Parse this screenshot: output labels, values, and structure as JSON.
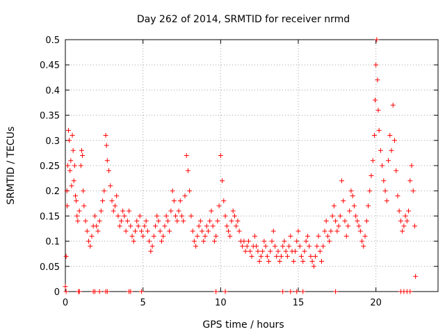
{
  "chart_data": {
    "type": "scatter",
    "title": "Day 262 of 2014, SRMTID for receiver nrmd",
    "xlabel": "GPS time / hours",
    "ylabel": "SRMTID / TECUs",
    "xlim": [
      0,
      24
    ],
    "ylim": [
      0,
      0.5
    ],
    "grid": true,
    "x_ticks": [
      {
        "value": 0,
        "label": "0"
      },
      {
        "value": 5,
        "label": "5"
      },
      {
        "value": 10,
        "label": "10"
      },
      {
        "value": 15,
        "label": "15"
      },
      {
        "value": 20,
        "label": "20"
      }
    ],
    "y_ticks": [
      {
        "value": 0,
        "label": "0"
      },
      {
        "value": 0.05,
        "label": "0.05"
      },
      {
        "value": 0.1,
        "label": "0.1"
      },
      {
        "value": 0.15,
        "label": "0.15"
      },
      {
        "value": 0.2,
        "label": "0.2"
      },
      {
        "value": 0.25,
        "label": "0.25"
      },
      {
        "value": 0.3,
        "label": "0.3"
      },
      {
        "value": 0.35,
        "label": "0.35"
      },
      {
        "value": 0.4,
        "label": "0.4"
      },
      {
        "value": 0.45,
        "label": "0.45"
      },
      {
        "value": 0.5,
        "label": "0.5"
      }
    ],
    "marker": "+",
    "marker_color": "#ff0000",
    "series": [
      {
        "name": "SRMTID",
        "points": [
          [
            0.0,
            0.01
          ],
          [
            0.05,
            0.07
          ],
          [
            0.1,
            0.2
          ],
          [
            0.12,
            0.17
          ],
          [
            0.15,
            0.25
          ],
          [
            0.2,
            0.32
          ],
          [
            0.25,
            0.3
          ],
          [
            0.3,
            0.24
          ],
          [
            0.35,
            0.26
          ],
          [
            0.4,
            0.21
          ],
          [
            0.45,
            0.31
          ],
          [
            0.5,
            0.28
          ],
          [
            0.55,
            0.22
          ],
          [
            0.6,
            0.25
          ],
          [
            0.65,
            0.19
          ],
          [
            0.7,
            0.18
          ],
          [
            0.75,
            0.15
          ],
          [
            0.8,
            0.14
          ],
          [
            0.9,
            0.16
          ],
          [
            1.0,
            0.25
          ],
          [
            1.05,
            0.28
          ],
          [
            1.1,
            0.27
          ],
          [
            1.15,
            0.2
          ],
          [
            1.2,
            0.17
          ],
          [
            1.3,
            0.14
          ],
          [
            1.4,
            0.12
          ],
          [
            1.5,
            0.1
          ],
          [
            1.6,
            0.09
          ],
          [
            1.7,
            0.11
          ],
          [
            1.8,
            0.13
          ],
          [
            1.9,
            0.15
          ],
          [
            2.0,
            0.13
          ],
          [
            2.1,
            0.12
          ],
          [
            2.2,
            0.14
          ],
          [
            2.3,
            0.16
          ],
          [
            2.4,
            0.18
          ],
          [
            2.5,
            0.2
          ],
          [
            2.6,
            0.31
          ],
          [
            2.65,
            0.29
          ],
          [
            2.7,
            0.26
          ],
          [
            2.8,
            0.24
          ],
          [
            2.9,
            0.21
          ],
          [
            3.0,
            0.18
          ],
          [
            3.1,
            0.16
          ],
          [
            3.2,
            0.17
          ],
          [
            3.3,
            0.19
          ],
          [
            3.4,
            0.15
          ],
          [
            3.5,
            0.13
          ],
          [
            3.6,
            0.14
          ],
          [
            3.7,
            0.16
          ],
          [
            3.8,
            0.15
          ],
          [
            3.9,
            0.12
          ],
          [
            4.0,
            0.14
          ],
          [
            4.1,
            0.16
          ],
          [
            4.2,
            0.13
          ],
          [
            4.3,
            0.11
          ],
          [
            4.4,
            0.1
          ],
          [
            4.5,
            0.12
          ],
          [
            4.6,
            0.14
          ],
          [
            4.7,
            0.13
          ],
          [
            4.8,
            0.15
          ],
          [
            4.9,
            0.12
          ],
          [
            5.0,
            0.11
          ],
          [
            5.1,
            0.13
          ],
          [
            5.2,
            0.14
          ],
          [
            5.3,
            0.12
          ],
          [
            5.4,
            0.1
          ],
          [
            5.5,
            0.08
          ],
          [
            5.6,
            0.09
          ],
          [
            5.7,
            0.11
          ],
          [
            5.8,
            0.13
          ],
          [
            5.9,
            0.15
          ],
          [
            6.0,
            0.14
          ],
          [
            6.1,
            0.12
          ],
          [
            6.2,
            0.1
          ],
          [
            6.3,
            0.11
          ],
          [
            6.4,
            0.13
          ],
          [
            6.5,
            0.15
          ],
          [
            6.6,
            0.14
          ],
          [
            6.7,
            0.12
          ],
          [
            6.8,
            0.16
          ],
          [
            6.9,
            0.2
          ],
          [
            7.0,
            0.18
          ],
          [
            7.1,
            0.15
          ],
          [
            7.2,
            0.14
          ],
          [
            7.3,
            0.16
          ],
          [
            7.4,
            0.18
          ],
          [
            7.5,
            0.15
          ],
          [
            7.6,
            0.14
          ],
          [
            7.7,
            0.19
          ],
          [
            7.8,
            0.27
          ],
          [
            7.9,
            0.24
          ],
          [
            8.0,
            0.2
          ],
          [
            8.1,
            0.15
          ],
          [
            8.2,
            0.12
          ],
          [
            8.3,
            0.1
          ],
          [
            8.4,
            0.09
          ],
          [
            8.5,
            0.11
          ],
          [
            8.6,
            0.13
          ],
          [
            8.7,
            0.14
          ],
          [
            8.8,
            0.12
          ],
          [
            8.9,
            0.1
          ],
          [
            9.0,
            0.11
          ],
          [
            9.1,
            0.13
          ],
          [
            9.2,
            0.12
          ],
          [
            9.3,
            0.14
          ],
          [
            9.4,
            0.16
          ],
          [
            9.5,
            0.13
          ],
          [
            9.6,
            0.1
          ],
          [
            9.7,
            0.11
          ],
          [
            9.8,
            0.14
          ],
          [
            9.9,
            0.17
          ],
          [
            10.0,
            0.27
          ],
          [
            10.1,
            0.22
          ],
          [
            10.2,
            0.18
          ],
          [
            10.3,
            0.15
          ],
          [
            10.4,
            0.13
          ],
          [
            10.5,
            0.12
          ],
          [
            10.6,
            0.11
          ],
          [
            10.7,
            0.14
          ],
          [
            10.8,
            0.16
          ],
          [
            10.9,
            0.15
          ],
          [
            11.0,
            0.13
          ],
          [
            11.1,
            0.14
          ],
          [
            11.2,
            0.12
          ],
          [
            11.3,
            0.1
          ],
          [
            11.4,
            0.09
          ],
          [
            11.5,
            0.1
          ],
          [
            11.6,
            0.08
          ],
          [
            11.7,
            0.09
          ],
          [
            11.8,
            0.1
          ],
          [
            11.9,
            0.08
          ],
          [
            12.0,
            0.07
          ],
          [
            12.1,
            0.09
          ],
          [
            12.2,
            0.11
          ],
          [
            12.3,
            0.09
          ],
          [
            12.4,
            0.08
          ],
          [
            12.5,
            0.06
          ],
          [
            12.6,
            0.07
          ],
          [
            12.7,
            0.08
          ],
          [
            12.8,
            0.1
          ],
          [
            12.9,
            0.09
          ],
          [
            13.0,
            0.07
          ],
          [
            13.1,
            0.06
          ],
          [
            13.2,
            0.08
          ],
          [
            13.3,
            0.1
          ],
          [
            13.4,
            0.12
          ],
          [
            13.5,
            0.09
          ],
          [
            13.6,
            0.07
          ],
          [
            13.7,
            0.08
          ],
          [
            13.8,
            0.06
          ],
          [
            13.9,
            0.07
          ],
          [
            14.0,
            0.09
          ],
          [
            14.1,
            0.1
          ],
          [
            14.2,
            0.08
          ],
          [
            14.3,
            0.07
          ],
          [
            14.4,
            0.09
          ],
          [
            14.5,
            0.11
          ],
          [
            14.6,
            0.08
          ],
          [
            14.7,
            0.06
          ],
          [
            14.8,
            0.08
          ],
          [
            14.9,
            0.1
          ],
          [
            15.0,
            0.12
          ],
          [
            15.1,
            0.09
          ],
          [
            15.2,
            0.07
          ],
          [
            15.3,
            0.06
          ],
          [
            15.4,
            0.08
          ],
          [
            15.5,
            0.1
          ],
          [
            15.6,
            0.11
          ],
          [
            15.7,
            0.09
          ],
          [
            15.8,
            0.07
          ],
          [
            15.9,
            0.06
          ],
          [
            16.0,
            0.05
          ],
          [
            16.1,
            0.07
          ],
          [
            16.2,
            0.09
          ],
          [
            16.3,
            0.11
          ],
          [
            16.4,
            0.08
          ],
          [
            16.5,
            0.06
          ],
          [
            16.6,
            0.09
          ],
          [
            16.7,
            0.12
          ],
          [
            16.8,
            0.14
          ],
          [
            16.9,
            0.11
          ],
          [
            17.0,
            0.1
          ],
          [
            17.1,
            0.12
          ],
          [
            17.2,
            0.15
          ],
          [
            17.3,
            0.17
          ],
          [
            17.4,
            0.14
          ],
          [
            17.5,
            0.12
          ],
          [
            17.6,
            0.13
          ],
          [
            17.7,
            0.15
          ],
          [
            17.8,
            0.22
          ],
          [
            17.9,
            0.18
          ],
          [
            18.0,
            0.14
          ],
          [
            18.1,
            0.11
          ],
          [
            18.2,
            0.13
          ],
          [
            18.3,
            0.16
          ],
          [
            18.4,
            0.2
          ],
          [
            18.5,
            0.19
          ],
          [
            18.6,
            0.17
          ],
          [
            18.7,
            0.15
          ],
          [
            18.8,
            0.14
          ],
          [
            18.9,
            0.13
          ],
          [
            19.0,
            0.12
          ],
          [
            19.1,
            0.1
          ],
          [
            19.2,
            0.09
          ],
          [
            19.3,
            0.11
          ],
          [
            19.4,
            0.14
          ],
          [
            19.5,
            0.17
          ],
          [
            19.6,
            0.2
          ],
          [
            19.7,
            0.23
          ],
          [
            19.8,
            0.26
          ],
          [
            19.9,
            0.31
          ],
          [
            19.95,
            0.38
          ],
          [
            20.0,
            0.45
          ],
          [
            20.05,
            0.5
          ],
          [
            20.1,
            0.42
          ],
          [
            20.15,
            0.36
          ],
          [
            20.2,
            0.32
          ],
          [
            20.3,
            0.28
          ],
          [
            20.4,
            0.25
          ],
          [
            20.5,
            0.22
          ],
          [
            20.6,
            0.2
          ],
          [
            20.7,
            0.18
          ],
          [
            20.8,
            0.26
          ],
          [
            20.9,
            0.31
          ],
          [
            21.0,
            0.28
          ],
          [
            21.1,
            0.37
          ],
          [
            21.2,
            0.3
          ],
          [
            21.3,
            0.24
          ],
          [
            21.4,
            0.19
          ],
          [
            21.5,
            0.16
          ],
          [
            21.6,
            0.14
          ],
          [
            21.7,
            0.12
          ],
          [
            21.8,
            0.13
          ],
          [
            21.9,
            0.15
          ],
          [
            22.0,
            0.14
          ],
          [
            22.1,
            0.16
          ],
          [
            22.2,
            0.22
          ],
          [
            22.3,
            0.25
          ],
          [
            22.4,
            0.2
          ],
          [
            22.5,
            0.13
          ],
          [
            22.55,
            0.03
          ],
          [
            0.05,
            0.0
          ],
          [
            0.85,
            0.0
          ],
          [
            0.9,
            0.0
          ],
          [
            1.8,
            0.0
          ],
          [
            1.9,
            0.0
          ],
          [
            2.2,
            0.0
          ],
          [
            2.6,
            0.0
          ],
          [
            2.7,
            0.0
          ],
          [
            4.1,
            0.0
          ],
          [
            4.2,
            0.0
          ],
          [
            4.9,
            0.0
          ],
          [
            9.7,
            0.0
          ],
          [
            10.3,
            0.0
          ],
          [
            14.0,
            0.0
          ],
          [
            14.5,
            0.0
          ],
          [
            14.9,
            0.0
          ],
          [
            15.3,
            0.0
          ],
          [
            17.4,
            0.0
          ],
          [
            21.6,
            0.0
          ],
          [
            21.8,
            0.0
          ],
          [
            22.0,
            0.0
          ],
          [
            22.2,
            0.0
          ]
        ]
      }
    ]
  }
}
